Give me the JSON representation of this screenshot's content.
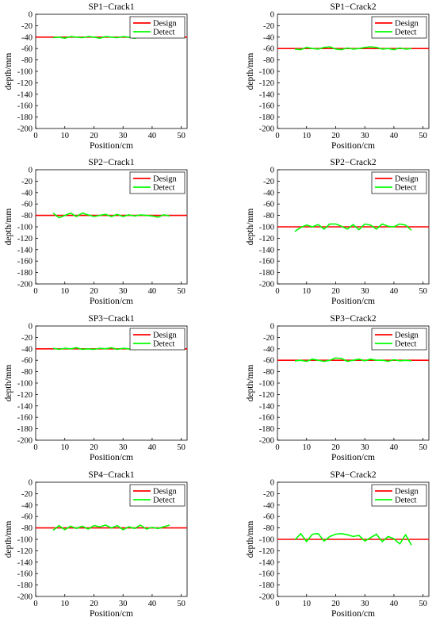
{
  "colors": {
    "design": "#ff0000",
    "detect": "#00ff00"
  },
  "legend": {
    "design": "Design",
    "detect": "Detect"
  },
  "xticks": [
    "0",
    "10",
    "20",
    "30",
    "40",
    "50"
  ],
  "yticks": [
    "0",
    "-20",
    "-40",
    "-60",
    "-80",
    "-100",
    "-120",
    "-140",
    "-160",
    "-180",
    "-200"
  ],
  "chart_data": [
    {
      "type": "line",
      "title": "SP1−Crack1",
      "xlabel": "Position/cm",
      "ylabel": "depth/mm",
      "xlim": [
        0,
        52
      ],
      "ylim": [
        -200,
        0
      ],
      "grid": false,
      "legend": "top-right",
      "x": [
        6,
        8,
        10,
        12,
        14,
        16,
        18,
        20,
        22,
        24,
        26,
        28,
        30,
        32,
        34,
        36,
        38,
        40,
        42,
        44,
        46
      ],
      "series": [
        {
          "name": "Design",
          "values": [
            -40,
            -40,
            -40,
            -40,
            -40,
            -40,
            -40,
            -40,
            -40,
            -40,
            -40,
            -40,
            -40,
            -40,
            -40,
            -40,
            -40,
            -40,
            -40,
            -40,
            -40
          ]
        },
        {
          "name": "Detect",
          "values": [
            -41,
            -40,
            -42,
            -39,
            -40,
            -41,
            -39,
            -40,
            -42,
            -39,
            -40,
            -41,
            -39,
            -40,
            -42,
            -39,
            -40,
            -41,
            -40,
            -39,
            -41
          ]
        }
      ]
    },
    {
      "type": "line",
      "title": "SP1−Crack2",
      "xlabel": "Position/cm",
      "ylabel": "depth/mm",
      "xlim": [
        0,
        52
      ],
      "ylim": [
        -200,
        0
      ],
      "grid": false,
      "legend": "top-right",
      "x": [
        6,
        8,
        10,
        12,
        14,
        16,
        18,
        20,
        22,
        24,
        26,
        28,
        30,
        32,
        34,
        36,
        38,
        40,
        42,
        44,
        46
      ],
      "series": [
        {
          "name": "Design",
          "values": [
            -60,
            -60,
            -60,
            -60,
            -60,
            -60,
            -60,
            -60,
            -60,
            -60,
            -60,
            -60,
            -60,
            -60,
            -60,
            -60,
            -60,
            -60,
            -60,
            -60,
            -60
          ]
        },
        {
          "name": "Detect",
          "values": [
            -61,
            -62,
            -58,
            -60,
            -61,
            -58,
            -57,
            -61,
            -62,
            -59,
            -61,
            -60,
            -58,
            -57,
            -58,
            -61,
            -60,
            -62,
            -59,
            -61,
            -60
          ]
        }
      ]
    },
    {
      "type": "line",
      "title": "SP2−Crack1",
      "xlabel": "Position/cm",
      "ylabel": "depth/mm",
      "xlim": [
        0,
        52
      ],
      "ylim": [
        -200,
        0
      ],
      "grid": false,
      "legend": "top-right",
      "x": [
        6,
        8,
        10,
        12,
        14,
        16,
        18,
        20,
        22,
        24,
        26,
        28,
        30,
        32,
        34,
        36,
        38,
        40,
        42,
        44,
        46
      ],
      "series": [
        {
          "name": "Design",
          "values": [
            -80,
            -80,
            -80,
            -80,
            -80,
            -80,
            -80,
            -80,
            -80,
            -80,
            -80,
            -80,
            -80,
            -80,
            -80,
            -80,
            -80,
            -80,
            -80,
            -80,
            -80
          ]
        },
        {
          "name": "Detect",
          "values": [
            -76,
            -84,
            -80,
            -76,
            -82,
            -76,
            -79,
            -82,
            -80,
            -78,
            -82,
            -78,
            -82,
            -79,
            -81,
            -79,
            -80,
            -81,
            -83,
            -79,
            -81
          ]
        }
      ]
    },
    {
      "type": "line",
      "title": "SP2−Crack2",
      "xlabel": "Position/cm",
      "ylabel": "depth/mm",
      "xlim": [
        0,
        52
      ],
      "ylim": [
        -200,
        0
      ],
      "grid": false,
      "legend": "top-right",
      "x": [
        6,
        8,
        10,
        12,
        14,
        16,
        18,
        20,
        22,
        24,
        26,
        28,
        30,
        32,
        34,
        36,
        38,
        40,
        42,
        44,
        46
      ],
      "series": [
        {
          "name": "Design",
          "values": [
            -100,
            -100,
            -100,
            -100,
            -100,
            -100,
            -100,
            -100,
            -100,
            -100,
            -100,
            -100,
            -100,
            -100,
            -100,
            -100,
            -100,
            -100,
            -100,
            -100,
            -100
          ]
        },
        {
          "name": "Detect",
          "values": [
            -108,
            -101,
            -97,
            -100,
            -96,
            -104,
            -95,
            -95,
            -99,
            -104,
            -96,
            -105,
            -95,
            -97,
            -104,
            -95,
            -99,
            -100,
            -95,
            -97,
            -106
          ]
        }
      ]
    },
    {
      "type": "line",
      "title": "SP3−Crack1",
      "xlabel": "Position/cm",
      "ylabel": "depth/mm",
      "xlim": [
        0,
        52
      ],
      "ylim": [
        -200,
        0
      ],
      "grid": false,
      "legend": "top-right",
      "x": [
        6,
        8,
        10,
        12,
        14,
        16,
        18,
        20,
        22,
        24,
        26,
        28,
        30,
        32,
        34,
        36,
        38,
        40,
        42,
        44,
        46
      ],
      "series": [
        {
          "name": "Design",
          "values": [
            -40,
            -40,
            -40,
            -40,
            -40,
            -40,
            -40,
            -40,
            -40,
            -40,
            -40,
            -40,
            -40,
            -40,
            -40,
            -40,
            -40,
            -40,
            -40,
            -40,
            -40
          ]
        },
        {
          "name": "Detect",
          "values": [
            -39,
            -41,
            -39,
            -40,
            -38,
            -41,
            -40,
            -41,
            -39,
            -40,
            -38,
            -41,
            -39,
            -40,
            -41,
            -39,
            -40,
            -38,
            -41,
            -40,
            -41
          ]
        }
      ]
    },
    {
      "type": "line",
      "title": "SP3−Crack2",
      "xlabel": "Position/cm",
      "ylabel": "depth/mm",
      "xlim": [
        0,
        52
      ],
      "ylim": [
        -200,
        0
      ],
      "grid": false,
      "legend": "top-right",
      "x": [
        6,
        8,
        10,
        12,
        14,
        16,
        18,
        20,
        22,
        24,
        26,
        28,
        30,
        32,
        34,
        36,
        38,
        40,
        42,
        44,
        46
      ],
      "series": [
        {
          "name": "Design",
          "values": [
            -60,
            -60,
            -60,
            -60,
            -60,
            -60,
            -60,
            -60,
            -60,
            -60,
            -60,
            -60,
            -60,
            -60,
            -60,
            -60,
            -60,
            -60,
            -60,
            -60,
            -60
          ]
        },
        {
          "name": "Detect",
          "values": [
            -61,
            -60,
            -62,
            -58,
            -60,
            -62,
            -60,
            -56,
            -57,
            -62,
            -60,
            -58,
            -61,
            -58,
            -60,
            -60,
            -62,
            -59,
            -61,
            -60,
            -61
          ]
        }
      ]
    },
    {
      "type": "line",
      "title": "SP4−Crack1",
      "xlabel": "Position/cm",
      "ylabel": "depth/mm",
      "xlim": [
        0,
        52
      ],
      "ylim": [
        -200,
        0
      ],
      "grid": false,
      "legend": "top-right",
      "x": [
        6,
        8,
        10,
        12,
        14,
        16,
        18,
        20,
        22,
        24,
        26,
        28,
        30,
        32,
        34,
        36,
        38,
        40,
        42,
        44,
        46
      ],
      "series": [
        {
          "name": "Design",
          "values": [
            -80,
            -80,
            -80,
            -80,
            -80,
            -80,
            -80,
            -80,
            -80,
            -80,
            -80,
            -80,
            -80,
            -80,
            -80,
            -80,
            -80,
            -80,
            -80,
            -80,
            -80
          ]
        },
        {
          "name": "Detect",
          "values": [
            -84,
            -76,
            -83,
            -77,
            -81,
            -77,
            -82,
            -76,
            -78,
            -75,
            -80,
            -76,
            -83,
            -78,
            -81,
            -75,
            -82,
            -79,
            -81,
            -78,
            -75
          ]
        }
      ]
    },
    {
      "type": "line",
      "title": "SP4−Crack2",
      "xlabel": "Position/cm",
      "ylabel": "depth/mm",
      "xlim": [
        0,
        52
      ],
      "ylim": [
        -200,
        0
      ],
      "grid": false,
      "legend": "top-right",
      "x": [
        6,
        8,
        10,
        12,
        14,
        16,
        18,
        20,
        22,
        24,
        26,
        28,
        30,
        32,
        34,
        36,
        38,
        40,
        42,
        44,
        46
      ],
      "series": [
        {
          "name": "Design",
          "values": [
            -100,
            -100,
            -100,
            -100,
            -100,
            -100,
            -100,
            -100,
            -100,
            -100,
            -100,
            -100,
            -100,
            -100,
            -100,
            -100,
            -100,
            -100,
            -100,
            -100,
            -100
          ]
        },
        {
          "name": "Detect",
          "values": [
            -101,
            -90,
            -104,
            -91,
            -90,
            -103,
            -95,
            -91,
            -90,
            -92,
            -95,
            -93,
            -103,
            -97,
            -91,
            -104,
            -95,
            -99,
            -108,
            -92,
            -110
          ]
        }
      ]
    }
  ]
}
